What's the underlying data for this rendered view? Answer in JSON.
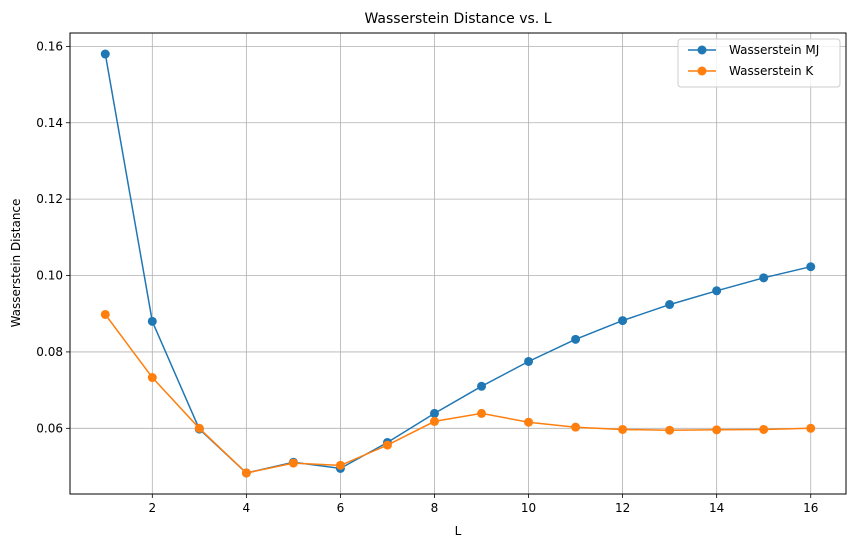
{
  "chart_data": {
    "type": "line",
    "title": "Wasserstein Distance vs. L",
    "xlabel": "L",
    "ylabel": "Wasserstein Distance",
    "x": [
      1,
      2,
      3,
      4,
      5,
      6,
      7,
      8,
      9,
      10,
      11,
      12,
      13,
      14,
      15,
      16
    ],
    "series": [
      {
        "name": "Wasserstein MJ",
        "color": "#1f77b4",
        "marker": "circle",
        "values": [
          0.158,
          0.088,
          0.0598,
          0.0483,
          0.0511,
          0.0495,
          0.0563,
          0.0639,
          0.071,
          0.0775,
          0.0833,
          0.0882,
          0.0924,
          0.096,
          0.0994,
          0.1023
        ]
      },
      {
        "name": "Wasserstein K",
        "color": "#ff7f0e",
        "marker": "circle",
        "values": [
          0.0898,
          0.0733,
          0.06,
          0.0483,
          0.0509,
          0.0503,
          0.0556,
          0.0618,
          0.0639,
          0.0616,
          0.0603,
          0.0597,
          0.0595,
          0.0596,
          0.0597,
          0.06
        ]
      }
    ],
    "xticks": [
      2,
      4,
      6,
      8,
      10,
      12,
      14,
      16
    ],
    "xtick_labels": [
      "2",
      "4",
      "6",
      "8",
      "10",
      "12",
      "14",
      "16"
    ],
    "yticks": [
      0.06,
      0.08,
      0.1,
      0.12,
      0.14,
      0.16
    ],
    "ytick_labels": [
      "0.06",
      "0.08",
      "0.10",
      "0.12",
      "0.14",
      "0.16"
    ],
    "xlim": [
      0.25,
      16.75
    ],
    "ylim": [
      0.0428,
      0.1635
    ],
    "grid": true,
    "legend_position": "upper right"
  }
}
